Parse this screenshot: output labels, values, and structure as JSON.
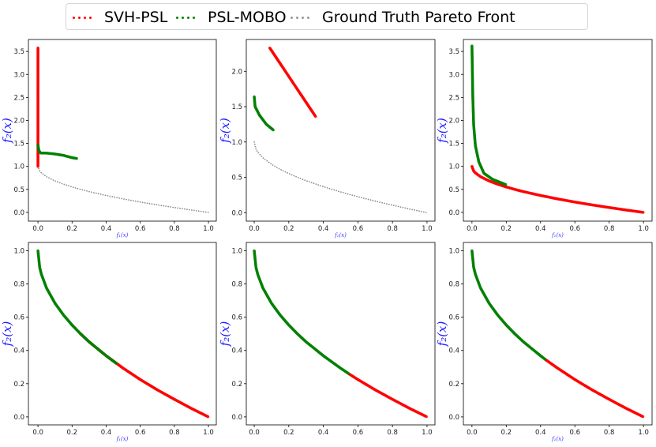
{
  "legend": {
    "placement": "top-center",
    "items": [
      {
        "label": "SVH-PSL",
        "color": "#ff0000"
      },
      {
        "label": "PSL-MOBO",
        "color": "#008000"
      },
      {
        "label": "Ground Truth Pareto Front",
        "color": "#808080"
      }
    ]
  },
  "chart_data": {
    "type": "scatter",
    "layout": "2x3 grid",
    "grid": false,
    "ground_truth_pareto_front": [
      [
        0,
        1.0
      ],
      [
        0.01,
        0.9
      ],
      [
        0.02,
        0.859
      ],
      [
        0.05,
        0.776
      ],
      [
        0.1,
        0.684
      ],
      [
        0.15,
        0.613
      ],
      [
        0.2,
        0.553
      ],
      [
        0.25,
        0.5
      ],
      [
        0.3,
        0.452
      ],
      [
        0.4,
        0.368
      ],
      [
        0.5,
        0.293
      ],
      [
        0.6,
        0.225
      ],
      [
        0.7,
        0.163
      ],
      [
        0.8,
        0.106
      ],
      [
        0.9,
        0.051
      ],
      [
        1.0,
        0.0
      ]
    ],
    "panels": [
      {
        "xlabel": "f₁(x)",
        "ylabel": "f₂(x)",
        "xlim": [
          -0.056,
          1.046
        ],
        "ylim": [
          -0.19,
          3.76
        ],
        "xticks": [
          "0.0",
          "0.2",
          "0.4",
          "0.6",
          "0.8",
          "1.0"
        ],
        "yticks": [
          "0.0",
          "0.5",
          "1.0",
          "1.5",
          "2.0",
          "2.5",
          "3.0",
          "3.5"
        ],
        "series": [
          {
            "name": "Ground Truth Pareto Front",
            "points": "ground_truth"
          },
          {
            "name": "SVH-PSL",
            "points": [
              [
                0,
                1.0
              ],
              [
                0,
                3.58
              ]
            ]
          },
          {
            "name": "PSL-MOBO",
            "points": [
              [
                0,
                1.47
              ],
              [
                0.005,
                1.35
              ],
              [
                0.015,
                1.29
              ],
              [
                0.05,
                1.29
              ],
              [
                0.1,
                1.27
              ],
              [
                0.15,
                1.24
              ],
              [
                0.2,
                1.19
              ],
              [
                0.23,
                1.17
              ]
            ]
          }
        ]
      },
      {
        "xlabel": "f₁(x)",
        "ylabel": "f₂(x)",
        "xlim": [
          -0.046,
          1.046
        ],
        "ylim": [
          -0.12,
          2.45
        ],
        "xticks": [
          "0.0",
          "0.2",
          "0.4",
          "0.6",
          "0.8",
          "1.0"
        ],
        "yticks": [
          "0.0",
          "0.5",
          "1.0",
          "1.5",
          "2.0"
        ],
        "series": [
          {
            "name": "Ground Truth Pareto Front",
            "points": "ground_truth"
          },
          {
            "name": "SVH-PSL",
            "points": [
              [
                0.09,
                2.33
              ],
              [
                0.355,
                1.36
              ]
            ]
          },
          {
            "name": "PSL-MOBO",
            "points": [
              [
                0,
                1.64
              ],
              [
                0.005,
                1.5
              ],
              [
                0.03,
                1.38
              ],
              [
                0.07,
                1.25
              ],
              [
                0.11,
                1.17
              ]
            ]
          }
        ]
      },
      {
        "xlabel": "f₁(x)",
        "ylabel": "f₂(x)",
        "xlim": [
          -0.05,
          1.05
        ],
        "ylim": [
          -0.19,
          3.76
        ],
        "xticks": [
          "0.0",
          "0.2",
          "0.4",
          "0.6",
          "0.8",
          "1.0"
        ],
        "yticks": [
          "0.0",
          "0.5",
          "1.0",
          "1.5",
          "2.0",
          "2.5",
          "3.0",
          "3.5"
        ],
        "series": [
          {
            "name": "Ground Truth Pareto Front",
            "points": "ground_truth"
          },
          {
            "name": "SVH-PSL",
            "points": [
              [
                0,
                1.0
              ],
              [
                0.01,
                0.9
              ],
              [
                0.02,
                0.859
              ],
              [
                0.05,
                0.776
              ],
              [
                0.1,
                0.684
              ],
              [
                0.15,
                0.613
              ],
              [
                0.2,
                0.553
              ],
              [
                0.25,
                0.5
              ],
              [
                0.3,
                0.452
              ],
              [
                0.4,
                0.368
              ],
              [
                0.5,
                0.293
              ],
              [
                0.6,
                0.225
              ],
              [
                0.7,
                0.163
              ],
              [
                0.8,
                0.106
              ],
              [
                0.9,
                0.051
              ],
              [
                1.0,
                0.0
              ]
            ]
          },
          {
            "name": "PSL-MOBO",
            "points": [
              [
                0,
                3.62
              ],
              [
                0.005,
                2.5
              ],
              [
                0.01,
                1.9
              ],
              [
                0.02,
                1.45
              ],
              [
                0.04,
                1.1
              ],
              [
                0.07,
                0.85
              ],
              [
                0.12,
                0.72
              ],
              [
                0.2,
                0.6
              ]
            ]
          }
        ]
      },
      {
        "xlabel": "f₁(x)",
        "ylabel": "f₂(x)",
        "xlim": [
          -0.056,
          1.046
        ],
        "ylim": [
          -0.048,
          1.05
        ],
        "xticks": [
          "0.0",
          "0.2",
          "0.4",
          "0.6",
          "0.8",
          "1.0"
        ],
        "yticks": [
          "0.0",
          "0.2",
          "0.4",
          "0.6",
          "0.8",
          "1.0"
        ],
        "series": [
          {
            "name": "Ground Truth Pareto Front",
            "points": "ground_truth"
          },
          {
            "name": "SVH-PSL",
            "points": [
              [
                0.25,
                0.5
              ],
              [
                0.3,
                0.452
              ],
              [
                0.4,
                0.368
              ],
              [
                0.5,
                0.293
              ],
              [
                0.6,
                0.225
              ],
              [
                0.7,
                0.163
              ],
              [
                0.8,
                0.106
              ],
              [
                0.9,
                0.051
              ],
              [
                1.0,
                0.0
              ]
            ]
          },
          {
            "name": "PSL-MOBO",
            "points": [
              [
                0,
                1.0
              ],
              [
                0.01,
                0.9
              ],
              [
                0.02,
                0.859
              ],
              [
                0.05,
                0.776
              ],
              [
                0.1,
                0.684
              ],
              [
                0.15,
                0.613
              ],
              [
                0.2,
                0.553
              ],
              [
                0.25,
                0.5
              ],
              [
                0.3,
                0.452
              ],
              [
                0.4,
                0.368
              ],
              [
                0.46,
                0.322
              ]
            ]
          }
        ]
      },
      {
        "xlabel": "",
        "ylabel": "f₂(x)",
        "xlim": [
          -0.046,
          1.046
        ],
        "ylim": [
          -0.048,
          1.05
        ],
        "xticks": [
          "0.0",
          "0.2",
          "0.4",
          "0.6",
          "0.8",
          "1.0"
        ],
        "yticks": [
          "0.0",
          "0.2",
          "0.4",
          "0.6",
          "0.8",
          "1.0"
        ],
        "series": [
          {
            "name": "Ground Truth Pareto Front",
            "points": "ground_truth"
          },
          {
            "name": "SVH-PSL",
            "points": [
              [
                0.55,
                0.258
              ],
              [
                0.6,
                0.225
              ],
              [
                0.7,
                0.163
              ],
              [
                0.8,
                0.106
              ],
              [
                0.9,
                0.051
              ],
              [
                1.0,
                0.0
              ]
            ]
          },
          {
            "name": "PSL-MOBO",
            "points": [
              [
                0,
                1.0
              ],
              [
                0.01,
                0.9
              ],
              [
                0.02,
                0.859
              ],
              [
                0.05,
                0.776
              ],
              [
                0.1,
                0.684
              ],
              [
                0.15,
                0.613
              ],
              [
                0.2,
                0.553
              ],
              [
                0.25,
                0.5
              ],
              [
                0.3,
                0.452
              ],
              [
                0.4,
                0.368
              ],
              [
                0.5,
                0.293
              ],
              [
                0.55,
                0.258
              ]
            ]
          }
        ]
      },
      {
        "xlabel": "f₁(x)",
        "ylabel": "f₂(x)",
        "xlim": [
          -0.05,
          1.05
        ],
        "ylim": [
          -0.048,
          1.05
        ],
        "xticks": [
          "0.0",
          "0.2",
          "0.4",
          "0.6",
          "0.8",
          "1.0"
        ],
        "yticks": [
          "0.0",
          "0.2",
          "0.4",
          "0.6",
          "0.8",
          "1.0"
        ],
        "series": [
          {
            "name": "Ground Truth Pareto Front",
            "points": "ground_truth"
          },
          {
            "name": "SVH-PSL",
            "points": [
              [
                0.43,
                0.344
              ],
              [
                0.5,
                0.293
              ],
              [
                0.6,
                0.225
              ],
              [
                0.7,
                0.163
              ],
              [
                0.8,
                0.106
              ],
              [
                0.9,
                0.051
              ],
              [
                1.0,
                0.0
              ]
            ]
          },
          {
            "name": "PSL-MOBO",
            "points": [
              [
                0,
                1.0
              ],
              [
                0.01,
                0.9
              ],
              [
                0.02,
                0.859
              ],
              [
                0.05,
                0.776
              ],
              [
                0.1,
                0.684
              ],
              [
                0.15,
                0.613
              ],
              [
                0.2,
                0.553
              ],
              [
                0.25,
                0.5
              ],
              [
                0.3,
                0.452
              ],
              [
                0.4,
                0.368
              ],
              [
                0.43,
                0.344
              ]
            ]
          }
        ]
      }
    ]
  }
}
